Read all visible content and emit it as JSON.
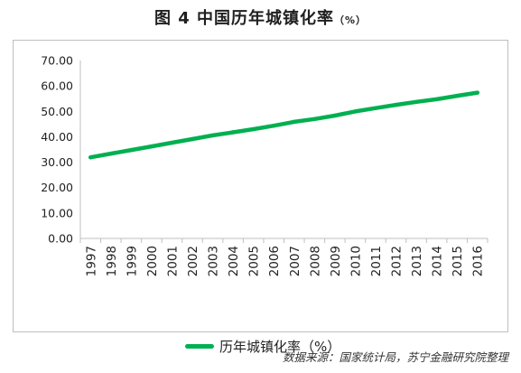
{
  "title": {
    "main": "图 4 中国历年城镇化率",
    "unit": "（%）"
  },
  "source_note": "数据来源：国家统计局，苏宁金融研究院整理",
  "colors": {
    "series_line": "#00b050",
    "axis": "#bfbfbf"
  },
  "chart_data": {
    "type": "line",
    "title": "图 4 中国历年城镇化率（%）",
    "xlabel": "",
    "ylabel": "",
    "ylim": [
      0,
      70
    ],
    "y_ticks": [
      "0.00",
      "10.00",
      "20.00",
      "30.00",
      "40.00",
      "50.00",
      "60.00",
      "70.00"
    ],
    "grid": false,
    "legend_position": "bottom",
    "categories": [
      "1997",
      "1998",
      "1999",
      "2000",
      "2001",
      "2002",
      "2003",
      "2004",
      "2005",
      "2006",
      "2007",
      "2008",
      "2009",
      "2010",
      "2011",
      "2012",
      "2013",
      "2014",
      "2015",
      "2016"
    ],
    "series": [
      {
        "name": "历年城镇化率（%）",
        "values": [
          31.91,
          33.35,
          34.78,
          36.22,
          37.66,
          39.09,
          40.53,
          41.76,
          42.99,
          44.34,
          45.89,
          46.99,
          48.34,
          49.95,
          51.27,
          52.57,
          53.73,
          54.77,
          56.1,
          57.35
        ]
      }
    ]
  }
}
